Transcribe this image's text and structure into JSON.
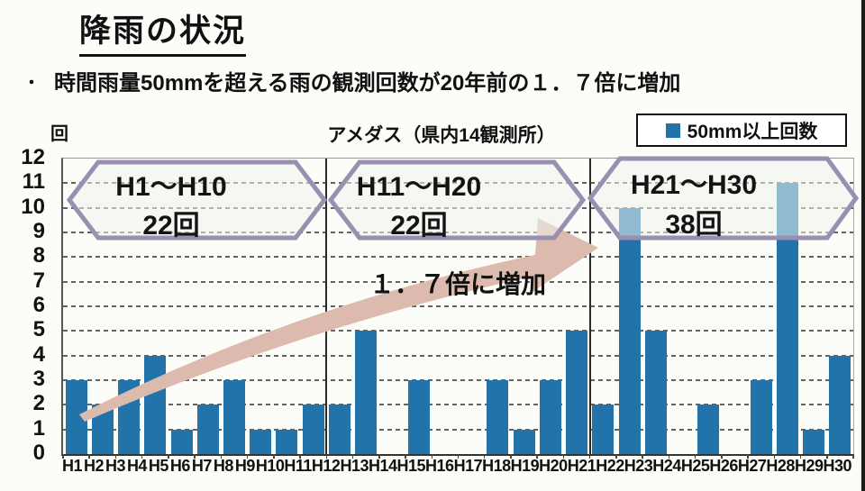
{
  "page": {
    "title": "降雨の状況",
    "bullet_marker": "・",
    "bullet": "時間雨量50mmを超える雨の観測回数が20年前の１．７倍に増加"
  },
  "chart": {
    "title": "アメダス（県内14観測所）",
    "unit_label": "回",
    "legend": {
      "label": "50mm以上回数",
      "marker_color": "#2173aa"
    },
    "annotation": "１．７倍に増加",
    "callouts": [
      {
        "range": "H1～H10",
        "count": "22回"
      },
      {
        "range": "H11～H20",
        "count": "22回"
      },
      {
        "range": "H21～H30",
        "count": "38回"
      }
    ]
  },
  "chart_data": {
    "type": "bar",
    "title": "アメダス（県内14観測所）",
    "categories": [
      "H1",
      "H2",
      "H3",
      "H4",
      "H5",
      "H6",
      "H7",
      "H8",
      "H9",
      "H10",
      "H11",
      "H12",
      "H13",
      "H14",
      "H15",
      "H16",
      "H17",
      "H18",
      "H19",
      "H20",
      "H21",
      "H22",
      "H23",
      "H24",
      "H25",
      "H26",
      "H27",
      "H28",
      "H29",
      "H30"
    ],
    "values": [
      3,
      2,
      3,
      4,
      1,
      2,
      3,
      1,
      1,
      2,
      2,
      5,
      0,
      3,
      0,
      0,
      3,
      1,
      3,
      5,
      2,
      10,
      5,
      0,
      2,
      0,
      3,
      11,
      1,
      4
    ],
    "xlabel": "",
    "ylabel": "回",
    "ylim": [
      0,
      12
    ],
    "yticks": [
      0,
      1,
      2,
      3,
      4,
      5,
      6,
      7,
      8,
      9,
      10,
      11,
      12
    ],
    "grid": "horizontal-dashed",
    "legend_entries": [
      "50mm以上回数"
    ],
    "legend_position": "top-right",
    "bar_color": "#2173aa",
    "section_dividers_after_index": [
      10,
      20
    ],
    "sections": [
      {
        "label": "H1～H10",
        "total_label": "22回",
        "total": 22
      },
      {
        "label": "H11～H20",
        "total_label": "22回",
        "total": 22
      },
      {
        "label": "H21～H30",
        "total_label": "38回",
        "total": 38
      }
    ],
    "annotation": "１．７倍に増加"
  },
  "colors": {
    "bar": "#2173aa",
    "hexagon_border": "#9a8fb0",
    "hexagon_fill": "#eef3ee",
    "arrow": "#dcbbae",
    "background": "#fcfcf8",
    "scan_edge": "#1a1a1a"
  }
}
